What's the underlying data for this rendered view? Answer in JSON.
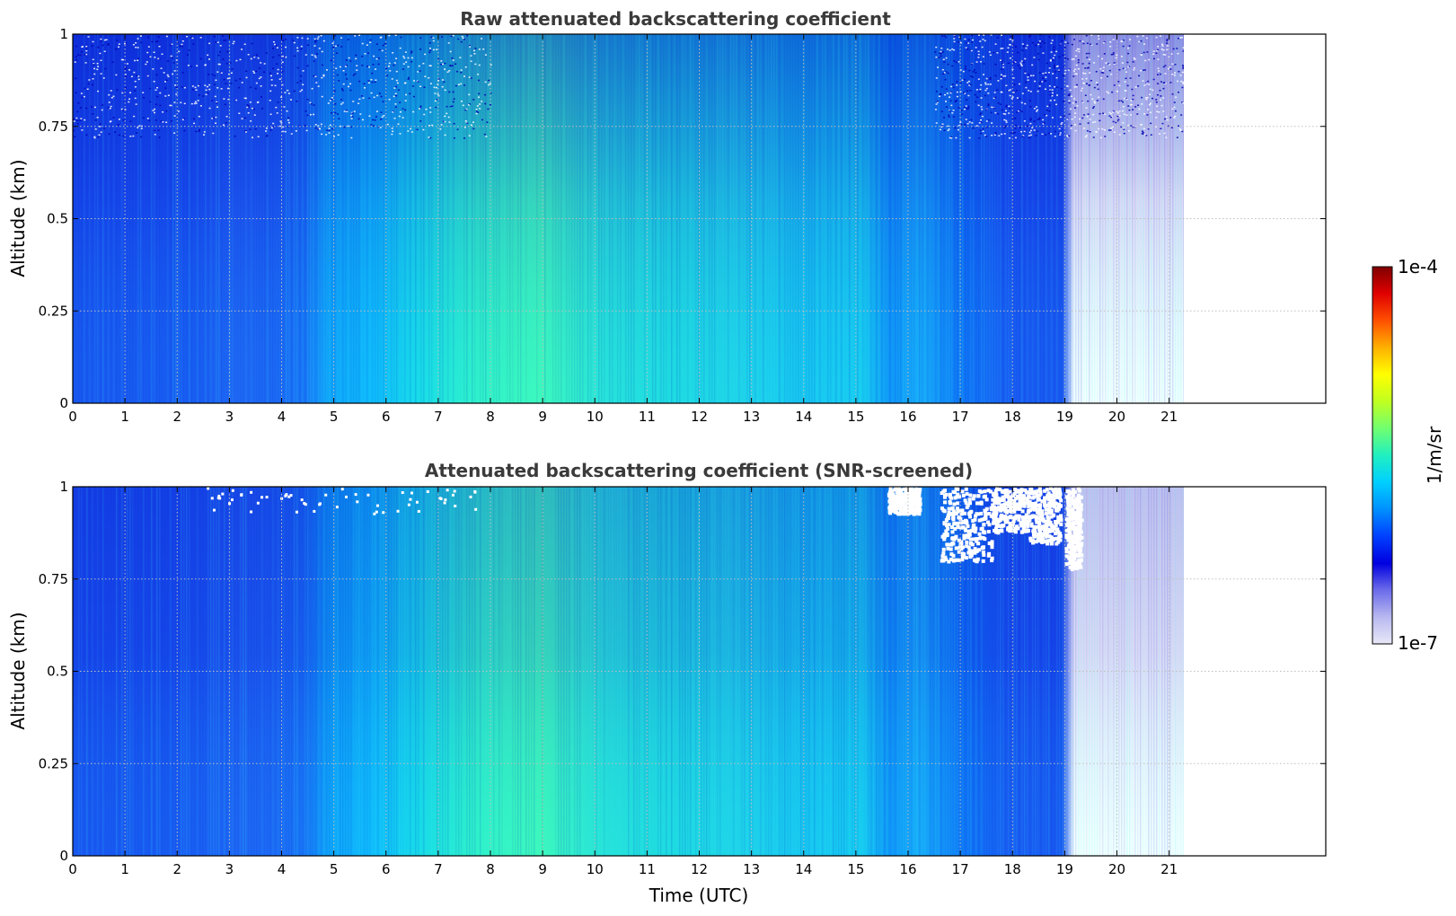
{
  "colors": {
    "colormap": [
      "#e8e8f8",
      "#b8b8f0",
      "#6b6bea",
      "#0000e0",
      "#0040ff",
      "#0090ff",
      "#00d0ff",
      "#20f0c0",
      "#70ff70",
      "#c0ff20",
      "#ffff00",
      "#ffb000",
      "#ff5000",
      "#e00000",
      "#800000"
    ],
    "grid": "#bfbfbf",
    "frame": "#000000"
  },
  "chart_data": [
    {
      "type": "heatmap",
      "title": "Raw attenuated backscattering coefficient",
      "xlabel": "",
      "ylabel": "Altitude (km)",
      "xlim": [
        0,
        24
      ],
      "ylim": [
        0,
        1
      ],
      "xticks": [
        "0",
        "1",
        "2",
        "3",
        "4",
        "5",
        "6",
        "7",
        "8",
        "9",
        "10",
        "11",
        "12",
        "13",
        "14",
        "15",
        "16",
        "17",
        "18",
        "19",
        "20",
        "21"
      ],
      "yticks": [
        "0",
        "0.25",
        "0.5",
        "0.75",
        "1"
      ],
      "data_end_time": 21.3,
      "grid": true,
      "screened": false
    },
    {
      "type": "heatmap",
      "title": "Attenuated backscattering coefficient (SNR-screened)",
      "xlabel": "Time (UTC)",
      "ylabel": "Altitude (km)",
      "xlim": [
        0,
        24
      ],
      "ylim": [
        0,
        1
      ],
      "xticks": [
        "0",
        "1",
        "2",
        "3",
        "4",
        "5",
        "6",
        "7",
        "8",
        "9",
        "10",
        "11",
        "12",
        "13",
        "14",
        "15",
        "16",
        "17",
        "18",
        "19",
        "20",
        "21"
      ],
      "yticks": [
        "0",
        "0.25",
        "0.5",
        "0.75",
        "1"
      ],
      "data_end_time": 21.3,
      "grid": true,
      "screened": true
    }
  ],
  "colorbar": {
    "label": "1/m/sr",
    "max_label": "1e-4",
    "min_label": "1e-7",
    "scale": "log",
    "range": [
      1e-07,
      0.0001
    ]
  }
}
